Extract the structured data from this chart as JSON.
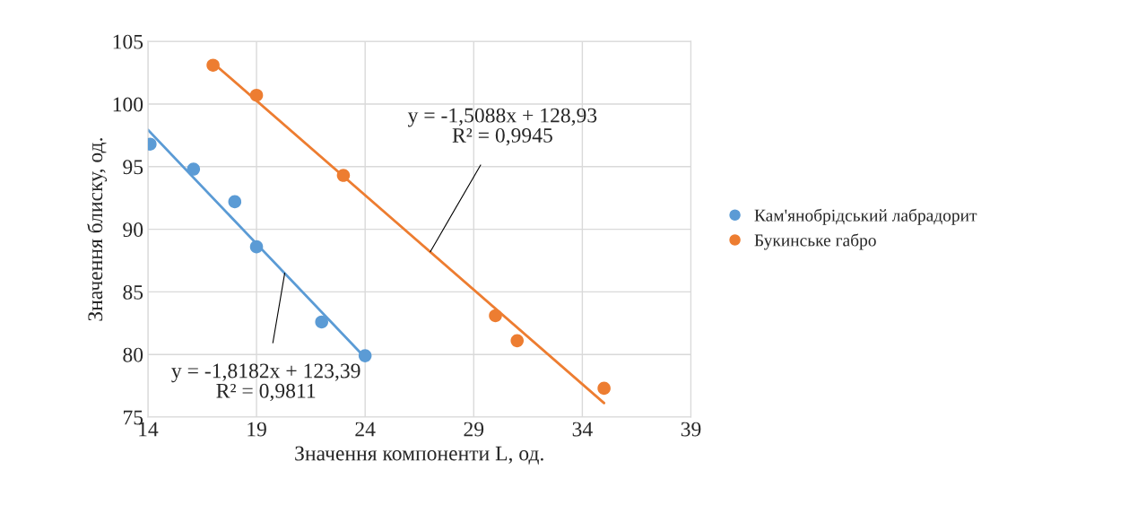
{
  "chart_data": {
    "type": "scatter",
    "xlabel": "Значення компоненти L, од.",
    "ylabel": "Значення блиску, од.",
    "series": [
      {
        "name": "Кам'янобрідський лабрадорит",
        "color": "#5b9bd5",
        "x": [
          14.1,
          16.1,
          18.0,
          19.0,
          22.0,
          24.0
        ],
        "values": [
          96.8,
          94.8,
          92.2,
          88.6,
          82.6,
          79.9
        ]
      },
      {
        "name": "Букинське габро",
        "color": "#ed7d31",
        "x": [
          17.0,
          19.0,
          23.0,
          30.0,
          31.0,
          35.0
        ],
        "values": [
          103.1,
          100.7,
          94.3,
          83.1,
          81.1,
          77.3
        ]
      },
      {
        "color": "#5b9bd5",
        "type": "line",
        "marker": "none",
        "x": [
          14,
          24
        ],
        "values": [
          97.94,
          79.75
        ]
      },
      {
        "color": "#ed7d31",
        "type": "line",
        "marker": "none",
        "x": [
          17,
          35
        ],
        "values": [
          103.28,
          76.12
        ]
      }
    ],
    "annotations": [
      {
        "text": "y = -1,8182x + 123,39\nR² = 0,9811",
        "x": 20.3,
        "y": 86.5
      },
      {
        "text": "y = -1,5088x + 128,93\nR² = 0,9945",
        "x": 27,
        "y": 88.2
      }
    ],
    "xlim": [
      14,
      39
    ],
    "xticks": [
      14,
      19,
      24,
      29,
      34,
      39
    ],
    "ylim": [
      75,
      105
    ],
    "yticks": [
      75,
      80,
      85,
      90,
      95,
      100,
      105
    ],
    "grid": true,
    "legend": "right",
    "marker": "circle"
  }
}
